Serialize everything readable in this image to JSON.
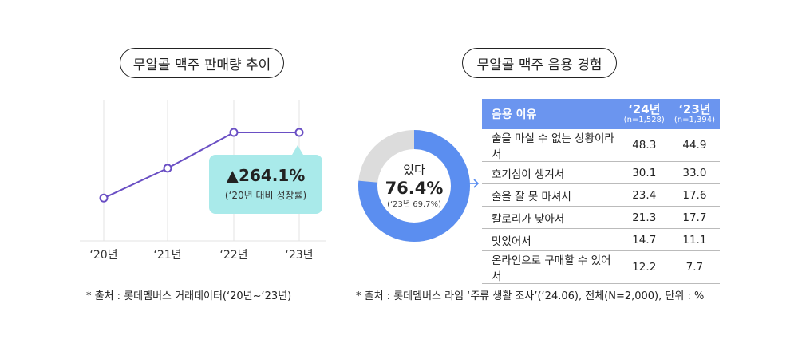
{
  "left_panel": {
    "title": "무알콜 맥주 판매량 추이",
    "callout": {
      "value": "▲264.1%",
      "note": "(‘20년 대비 성장률)"
    },
    "source": "* 출처 : 롯데멤버스 거래데이터(‘20년~‘23년)"
  },
  "right_panel": {
    "title": "무알콜 맥주 음용 경험",
    "donut": {
      "label": "있다",
      "value_text": "76.4%",
      "prev_text": "(‘23년 69.7%)"
    },
    "table": {
      "headers": [
        {
          "label": "음용 이유"
        },
        {
          "year": "‘24년",
          "n": "(n=1,528)"
        },
        {
          "year": "‘23년",
          "n": "(n=1,394)"
        }
      ],
      "rows": [
        {
          "reason": "술을 마실 수 없는 상황이라서",
          "y24": "48.3",
          "y23": "44.9"
        },
        {
          "reason": "호기심이 생겨서",
          "y24": "30.1",
          "y23": "33.0"
        },
        {
          "reason": "술을 잘 못 마셔서",
          "y24": "23.4",
          "y23": "17.6"
        },
        {
          "reason": "칼로리가 낮아서",
          "y24": "21.3",
          "y23": "17.7"
        },
        {
          "reason": "맛있어서",
          "y24": "14.7",
          "y23": "11.1"
        },
        {
          "reason": "온라인으로 구매할 수 있어서",
          "y24": "12.2",
          "y23": "7.7"
        }
      ]
    },
    "source": "* 출처 : 롯데멤버스 라임 ‘주류 생활 조사’(‘24.06), 전체(N=2,000), 단위 : %"
  },
  "colors": {
    "line": "#6a4fc4",
    "donut_fill": "#5b8ef0",
    "donut_rest": "#dcdcdc",
    "callout_bg": "#a9eaea",
    "table_header": "#6b95ef"
  },
  "chart_data": [
    {
      "type": "line",
      "categories": [
        "‘20년",
        "‘21년",
        "‘22년",
        "‘23년"
      ],
      "values": [
        1.0,
        2.2,
        3.64,
        3.64
      ],
      "note": "index relative to ‘20년, y-axis not labeled",
      "grid": "vertical gridlines"
    },
    {
      "type": "pie",
      "donut": true,
      "labels": [
        "있다",
        ""
      ],
      "values": [
        76.4,
        23.6
      ]
    },
    {
      "type": "table",
      "columns": [
        "음용 이유",
        "‘24년",
        "‘23년"
      ],
      "rows": [
        [
          "술을 마실 수 없는 상황이라서",
          48.3,
          44.9
        ],
        [
          "호기심이 생겨서",
          30.1,
          33.0
        ],
        [
          "술을 잘 못 마셔서",
          23.4,
          17.6
        ],
        [
          "칼로리가 낮아서",
          21.3,
          17.7
        ],
        [
          "맛있어서",
          14.7,
          11.1
        ],
        [
          "온라인으로 구매할 수 있어서",
          12.2,
          7.7
        ]
      ]
    }
  ]
}
